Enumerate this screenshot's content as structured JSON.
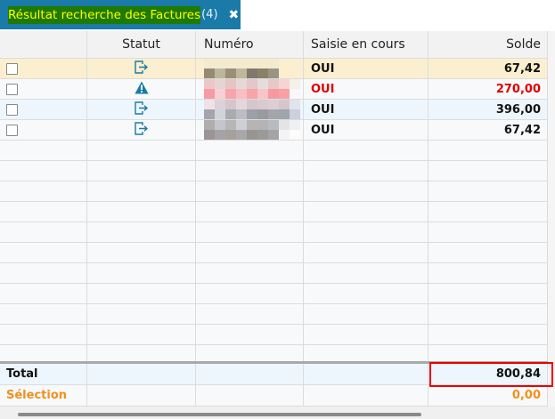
{
  "tab": {
    "title": "Résultat recherche des Factures",
    "count": "(4)",
    "close": "✖"
  },
  "columns": [
    "",
    "Statut",
    "Numéro",
    "Saisie en cours",
    "Solde"
  ],
  "rows": [
    {
      "status_icon": "exit-icon",
      "saisie": "OUI",
      "solde": "67,42",
      "highlight": "selected",
      "alert": false
    },
    {
      "status_icon": "warning-icon",
      "saisie": "OUI",
      "solde": "270,00",
      "highlight": "none",
      "alert": true
    },
    {
      "status_icon": "exit-icon",
      "saisie": "OUI",
      "solde": "396,00",
      "highlight": "alt",
      "alert": false
    },
    {
      "status_icon": "exit-icon",
      "saisie": "OUI",
      "solde": "67,42",
      "highlight": "none",
      "alert": false
    }
  ],
  "footer": {
    "total_label": "Total",
    "total_value": "800,84",
    "selection_label": "Sélection",
    "selection_value": "0,00"
  },
  "colors": {
    "tab": "#1a7aa8",
    "icon": "#1a7aa8",
    "alert": "#e00000",
    "selection": "#f0901e",
    "selected_row": "#fbefd0",
    "alt_row": "#eef6fd"
  }
}
